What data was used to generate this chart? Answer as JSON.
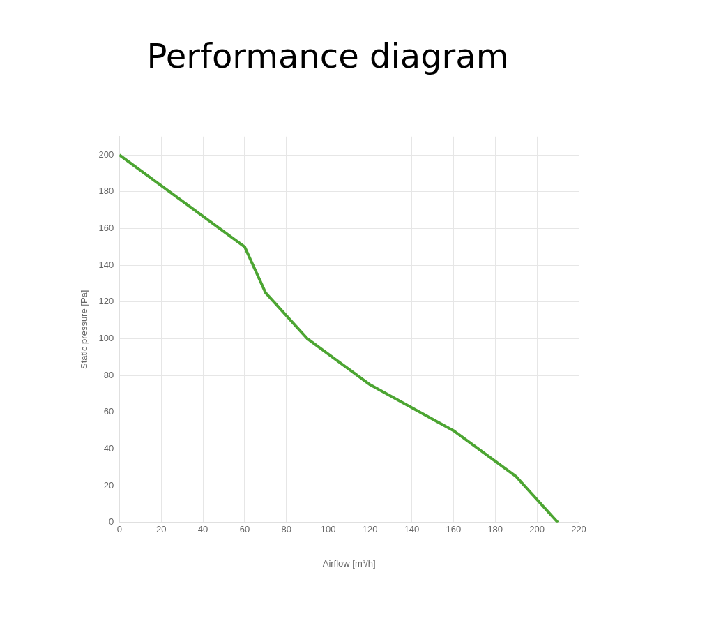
{
  "chart_data": {
    "type": "line",
    "title": "Performance diagram",
    "xlabel": "Airflow [m³/h]",
    "ylabel": "Static pressure [Pa]",
    "x": [
      0,
      60,
      70,
      90,
      120,
      160,
      190,
      210
    ],
    "series": [
      {
        "color": "#4ca532",
        "values": [
          200,
          150,
          125,
          100,
          75,
          50,
          25,
          0
        ]
      }
    ],
    "xlim": [
      0,
      220
    ],
    "xticks": [
      0,
      20,
      40,
      60,
      80,
      100,
      120,
      140,
      160,
      180,
      200,
      220
    ],
    "ylim": [
      0,
      210
    ],
    "yticks": [
      0,
      20,
      40,
      60,
      80,
      100,
      120,
      140,
      160,
      180,
      200
    ],
    "grid": true,
    "marker": "none",
    "line_style": "solid"
  }
}
